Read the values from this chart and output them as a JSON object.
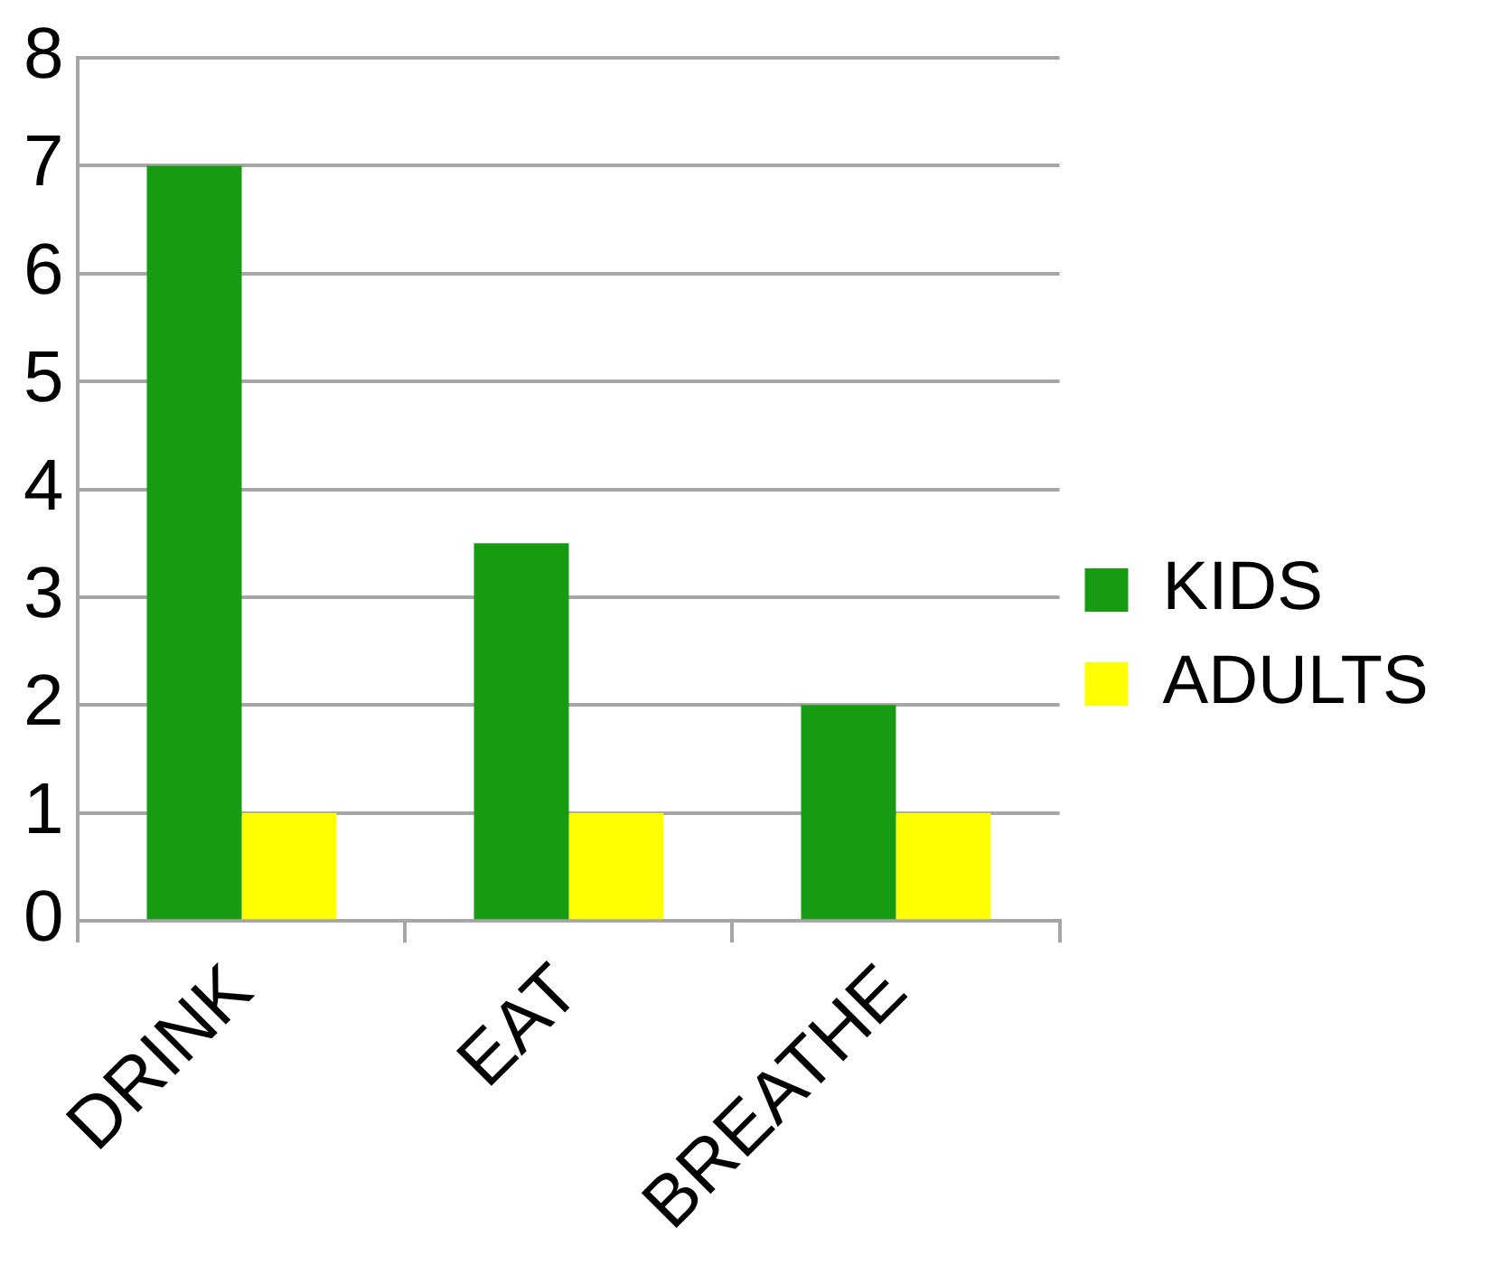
{
  "chart_data": {
    "type": "bar",
    "categories": [
      "DRINK",
      "EAT",
      "BREATHE"
    ],
    "series": [
      {
        "name": "KIDS",
        "color": "#169b13",
        "values": [
          7,
          3.5,
          2
        ]
      },
      {
        "name": "ADULTS",
        "color": "#ffff00",
        "values": [
          1,
          1,
          1
        ]
      }
    ],
    "ylim": [
      0,
      8
    ],
    "yticks": [
      0,
      1,
      2,
      3,
      4,
      5,
      6,
      7,
      8
    ],
    "grid": "y",
    "legend": "right"
  }
}
